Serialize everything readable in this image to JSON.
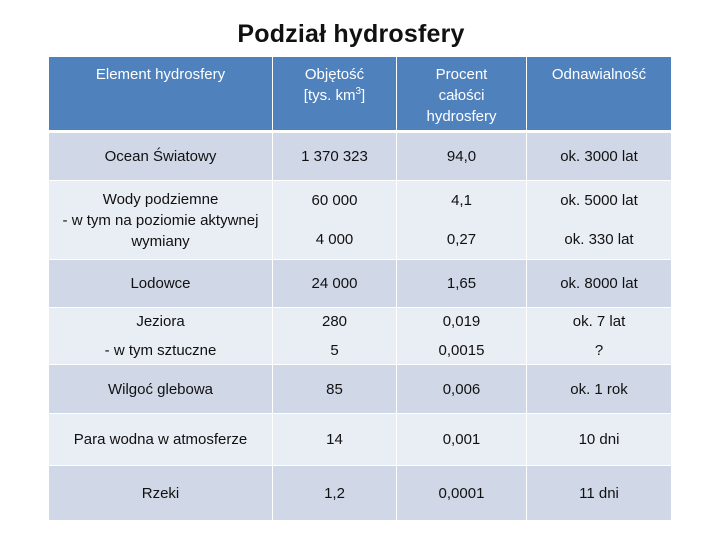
{
  "title": "Podział hydrosfery",
  "headers": {
    "element": "Element hydrosfery",
    "volume_line1": "Objętość",
    "volume_line2_pre": "[tys. km",
    "volume_line2_sup": "3",
    "volume_line2_post": "]",
    "percent": "Procent całości hydrosfery",
    "renewal": "Odnawialność"
  },
  "rows": {
    "ocean": {
      "element": "Ocean Światowy",
      "volume": "1 370 323",
      "percent": "94,0",
      "renewal": "ok. 3000 lat"
    },
    "ground": {
      "element_line1": "Wody podziemne",
      "element_line2": "- w tym na poziomie aktywnej wymiany",
      "volume": "60 000",
      "volume_sub": "4 000",
      "percent": "4,1",
      "percent_sub": "0,27",
      "renewal": "ok. 5000 lat",
      "renewal_sub": "ok. 330 lat"
    },
    "glaciers": {
      "element": "Lodowce",
      "volume": "24 000",
      "percent": "1,65",
      "renewal": "ok. 8000 lat"
    },
    "lakes": {
      "element": "Jeziora",
      "element_sub": "- w tym sztuczne",
      "volume": "280",
      "volume_sub": "5",
      "percent": "0,019",
      "percent_sub": "0,0015",
      "renewal": "ok. 7 lat",
      "renewal_sub": "?"
    },
    "soil": {
      "element": "Wilgoć glebowa",
      "volume": "85",
      "percent": "0,006",
      "renewal": "ok. 1 rok"
    },
    "vapour": {
      "element": "Para wodna w atmosferze",
      "volume": "14",
      "percent": "0,001",
      "renewal": "10 dni"
    },
    "rivers": {
      "element": "Rzeki",
      "volume": "1,2",
      "percent": "0,0001",
      "renewal": "11 dni"
    }
  }
}
